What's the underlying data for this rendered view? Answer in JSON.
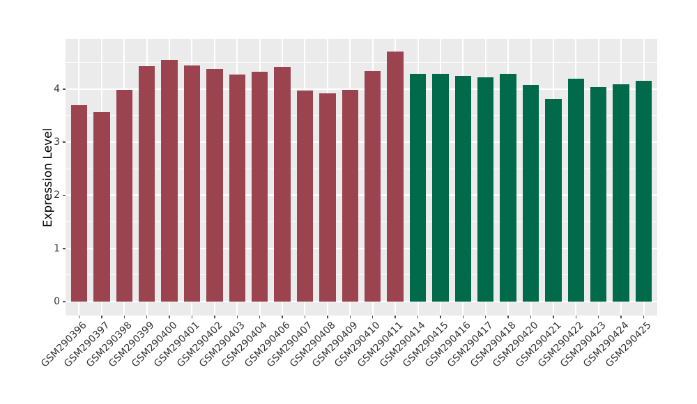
{
  "chart_data": {
    "type": "bar",
    "title": "",
    "xlabel": "",
    "ylabel": "Expression Level",
    "categories": [
      "GSM290396",
      "GSM290397",
      "GSM290398",
      "GSM290399",
      "GSM290400",
      "GSM290401",
      "GSM290402",
      "GSM290403",
      "GSM290404",
      "GSM290406",
      "GSM290407",
      "GSM290408",
      "GSM290409",
      "GSM290410",
      "GSM290411",
      "GSM290414",
      "GSM290415",
      "GSM290416",
      "GSM290417",
      "GSM290418",
      "GSM290420",
      "GSM290421",
      "GSM290422",
      "GSM290423",
      "GSM290424",
      "GSM290425"
    ],
    "values": [
      3.69,
      3.56,
      3.99,
      4.43,
      4.55,
      4.44,
      4.38,
      4.27,
      4.32,
      4.41,
      3.97,
      3.92,
      3.99,
      4.34,
      4.71,
      4.29,
      4.29,
      4.24,
      4.22,
      4.28,
      4.07,
      3.82,
      4.19,
      4.03,
      4.09,
      4.15
    ],
    "bar_groups": [
      "maroon",
      "maroon",
      "maroon",
      "maroon",
      "maroon",
      "maroon",
      "maroon",
      "maroon",
      "maroon",
      "maroon",
      "maroon",
      "maroon",
      "maroon",
      "maroon",
      "maroon",
      "green",
      "green",
      "green",
      "green",
      "green",
      "green",
      "green",
      "green",
      "green",
      "green",
      "green"
    ],
    "group_colors": {
      "maroon": "#9B4450",
      "green": "#006A4B"
    },
    "yticks": [
      0,
      1,
      2,
      3,
      4
    ],
    "ylim": [
      -0.26,
      4.94
    ],
    "grid": "major+minor horizontal, major vertical",
    "legend_position": "none",
    "panel_background": "#EBEBEB",
    "grid_color": "#FFFFFF",
    "tick_label_color": "#333333",
    "axis_title_color": "#000000",
    "bar_width_fraction": 0.72,
    "x_label_rotation_deg": 45
  }
}
